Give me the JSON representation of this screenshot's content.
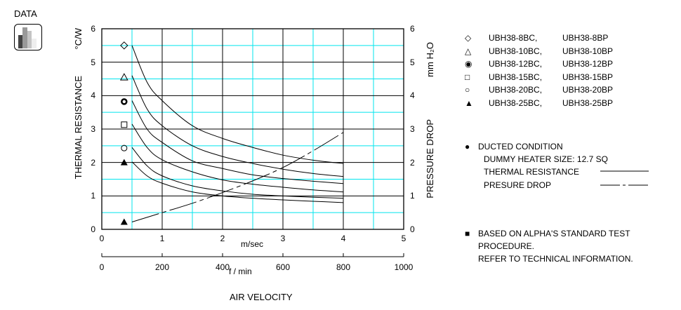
{
  "badge": {
    "label": "DATA",
    "icon": "bar-chart-icon"
  },
  "chart_data": {
    "type": "line",
    "xlabel": "m/sec",
    "x2label": "f / min",
    "bottom_title": "AIR VELOCITY",
    "ylabel": "THERMAL RESISTANCE",
    "yunit": "°C/W",
    "y2label": "PRESSURE DROP",
    "y2unit": "mm H₂O",
    "xlim": [
      0,
      5
    ],
    "x2lim": [
      0,
      1000
    ],
    "ylim": [
      0,
      6
    ],
    "y2lim": [
      0,
      6
    ],
    "xticks": [
      "0",
      "1",
      "2",
      "3",
      "4",
      "5"
    ],
    "x2ticks": [
      "0",
      "200",
      "400",
      "600",
      "800",
      "1000"
    ],
    "yticks": [
      "0",
      "1",
      "2",
      "3",
      "4",
      "5",
      "6"
    ],
    "y2ticks": [
      "0",
      "1",
      "2",
      "3",
      "4",
      "5",
      "6"
    ],
    "grid": true,
    "grid_major_color": "#000000",
    "grid_minor_color": "#00e5ee",
    "x": [
      0.5,
      0.75,
      1,
      1.5,
      2,
      2.5,
      3,
      3.5,
      4
    ],
    "series": [
      {
        "name": "UBH38-8BC, UBH38-8BP",
        "marker": "diamond-open",
        "marker_y": 5.5,
        "values": [
          5.5,
          4.4,
          3.85,
          3.1,
          2.72,
          2.45,
          2.22,
          2.07,
          1.97
        ]
      },
      {
        "name": "UBH38-10BC, UBH38-10BP",
        "marker": "triangle-open",
        "marker_y": 4.55,
        "values": [
          4.6,
          3.6,
          3.1,
          2.5,
          2.18,
          1.97,
          1.8,
          1.67,
          1.58
        ]
      },
      {
        "name": "UBH38-12BC, UBH38-12BP",
        "marker": "circle-bold",
        "marker_y": 3.82,
        "values": [
          3.85,
          3.0,
          2.6,
          2.05,
          1.82,
          1.63,
          1.52,
          1.44,
          1.37
        ]
      },
      {
        "name": "UBH38-15BC, UBH38-15BP",
        "marker": "square-open",
        "marker_y": 3.13,
        "values": [
          3.15,
          2.45,
          2.08,
          1.72,
          1.48,
          1.35,
          1.26,
          1.18,
          1.12
        ]
      },
      {
        "name": "UBH38-20BC, UBH38-20BP",
        "marker": "circle-open",
        "marker_y": 2.43,
        "values": [
          2.45,
          1.9,
          1.6,
          1.3,
          1.15,
          1.05,
          1.0,
          0.96,
          0.93
        ]
      },
      {
        "name": "UBH38-25BC, UBH38-25BP",
        "marker": "triangle-filled",
        "marker_y": 2.0,
        "values": [
          2.02,
          1.6,
          1.38,
          1.12,
          1.0,
          0.93,
          0.88,
          0.84,
          0.8
        ]
      }
    ],
    "pressure_drop": {
      "marker": "triangle-filled",
      "marker_y": 0.22,
      "x": [
        0.5,
        1,
        1.5,
        2,
        2.5,
        3,
        3.5,
        4
      ],
      "values": [
        0.22,
        0.5,
        0.78,
        1.1,
        1.45,
        1.85,
        2.35,
        2.9
      ]
    }
  },
  "legend": {
    "items": [
      {
        "symbol": "◇",
        "bc": "UBH38-8BC,",
        "bp": "UBH38-8BP"
      },
      {
        "symbol": "△",
        "bc": "UBH38-10BC,",
        "bp": "UBH38-10BP"
      },
      {
        "symbol": "◉",
        "bc": "UBH38-12BC,",
        "bp": "UBH38-12BP"
      },
      {
        "symbol": "□",
        "bc": "UBH38-15BC,",
        "bp": "UBH38-15BP"
      },
      {
        "symbol": "○",
        "bc": "UBH38-20BC,",
        "bp": "UBH38-20BP"
      },
      {
        "symbol": "▲",
        "bc": "UBH38-25BC,",
        "bp": "UBH38-25BP"
      }
    ]
  },
  "conditions": {
    "bullet": "●",
    "title": "DUCTED CONDITION",
    "heater": "DUMMY HEATER SIZE:  12.7 SQ",
    "thermal": "THERMAL RESISTANCE",
    "pressure": "PRESURE DROP"
  },
  "note": {
    "bullet": "■",
    "line1": "BASED ON ALPHA'S STANDARD TEST",
    "line2": "PROCEDURE.",
    "line3": "REFER TO TECHNICAL INFORMATION."
  }
}
